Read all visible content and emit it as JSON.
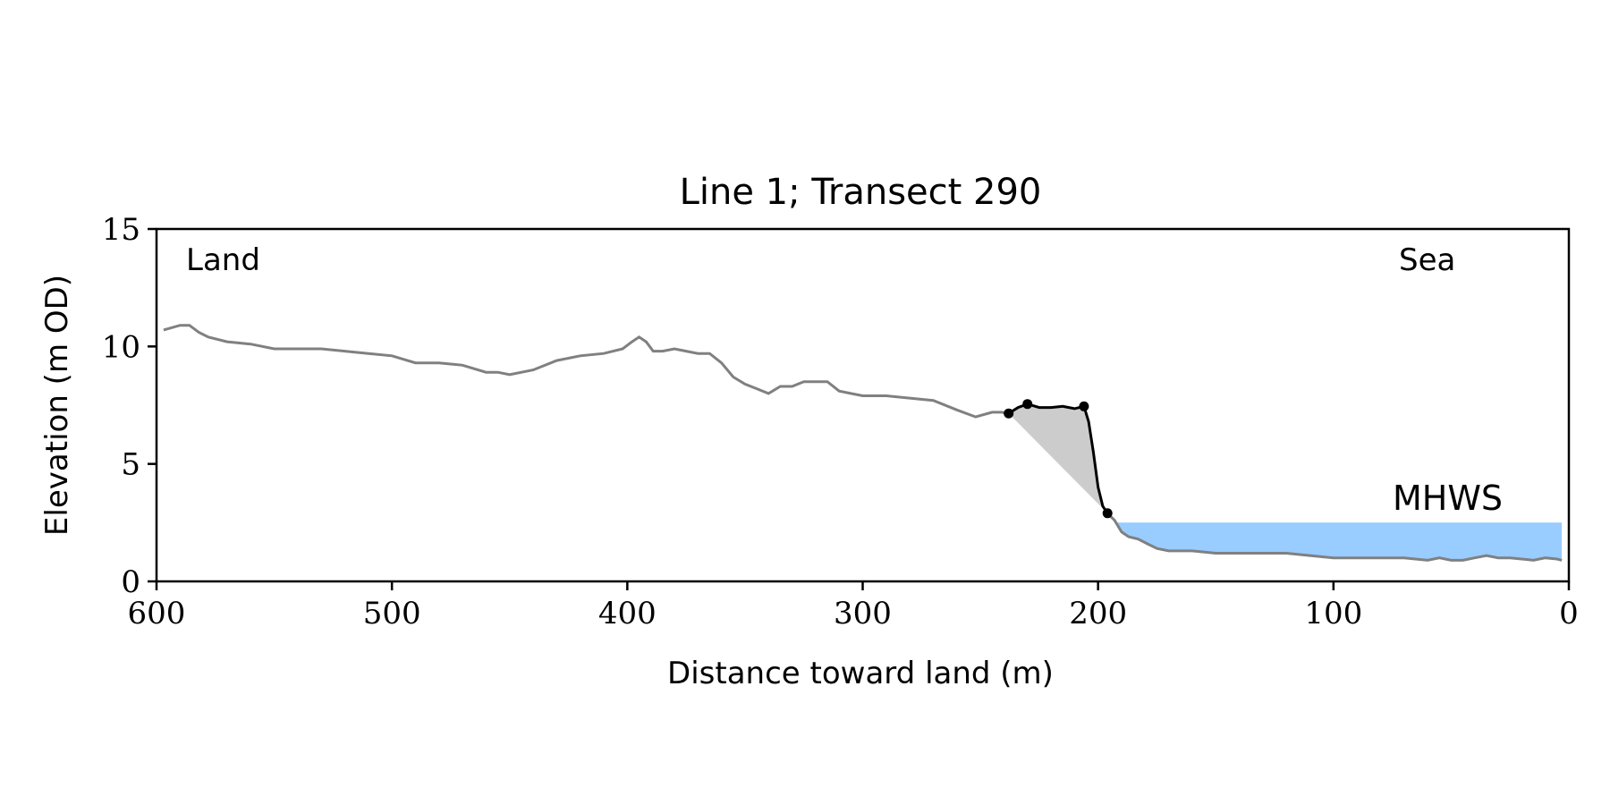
{
  "chart_data": {
    "type": "line",
    "title": "Line 1; Transect 290",
    "xlabel": "Distance toward land (m)",
    "ylabel": "Elevation (m OD)",
    "x_reversed": true,
    "xlim": [
      600,
      0
    ],
    "ylim": [
      0,
      15
    ],
    "grid": false,
    "xticks": [
      600,
      500,
      400,
      300,
      200,
      100,
      0
    ],
    "yticks": [
      0,
      5,
      10,
      15
    ],
    "annotations": {
      "land": "Land",
      "sea": "Sea",
      "mhws": "MHWS"
    },
    "colors": {
      "profile": "#808080",
      "cliff": "#000000",
      "shade": "#cccccc",
      "mhws_fill": "#99ccff",
      "mhws_text": "#6699cc"
    },
    "mhws": {
      "elevation": 2.5,
      "x_start": 192,
      "x_end": 3
    },
    "profile": {
      "x": [
        597,
        590,
        586,
        582,
        578,
        570,
        560,
        550,
        540,
        530,
        520,
        510,
        500,
        490,
        480,
        470,
        460,
        455,
        450,
        440,
        430,
        420,
        410,
        402,
        398,
        395,
        392,
        389,
        385,
        380,
        375,
        370,
        365,
        360,
        355,
        350,
        345,
        340,
        335,
        330,
        325,
        320,
        315,
        310,
        305,
        300,
        290,
        280,
        270,
        260,
        252,
        245,
        241,
        238
      ],
      "y": [
        10.7,
        10.9,
        10.9,
        10.6,
        10.4,
        10.2,
        10.1,
        9.9,
        9.9,
        9.9,
        9.8,
        9.7,
        9.6,
        9.3,
        9.3,
        9.2,
        8.9,
        8.9,
        8.8,
        9.0,
        9.4,
        9.6,
        9.7,
        9.9,
        10.2,
        10.4,
        10.2,
        9.8,
        9.8,
        9.9,
        9.8,
        9.7,
        9.7,
        9.3,
        8.7,
        8.4,
        8.2,
        8.0,
        8.3,
        8.3,
        8.5,
        8.5,
        8.5,
        8.1,
        8.0,
        7.9,
        7.9,
        7.8,
        7.7,
        7.3,
        7.0,
        7.2,
        7.2,
        7.15
      ]
    },
    "profile_sea": {
      "x": [
        193,
        190,
        187,
        183,
        179,
        175,
        170,
        165,
        160,
        150,
        140,
        130,
        120,
        110,
        100,
        90,
        80,
        70,
        60,
        55,
        50,
        45,
        40,
        35,
        30,
        25,
        20,
        15,
        10,
        5,
        3
      ],
      "y": [
        2.6,
        2.1,
        1.9,
        1.8,
        1.6,
        1.4,
        1.3,
        1.3,
        1.3,
        1.2,
        1.2,
        1.2,
        1.2,
        1.1,
        1.0,
        1.0,
        1.0,
        1.0,
        0.9,
        1.0,
        0.9,
        0.9,
        1.0,
        1.1,
        1.0,
        1.0,
        0.95,
        0.9,
        1.0,
        0.95,
        0.9
      ]
    },
    "cliff_line": {
      "x": [
        238,
        234,
        230,
        225,
        220,
        215,
        210,
        206,
        204,
        202,
        200,
        198,
        196
      ],
      "y": [
        7.15,
        7.4,
        7.55,
        7.4,
        7.4,
        7.45,
        7.35,
        7.45,
        6.8,
        5.5,
        4.0,
        3.2,
        2.9
      ]
    },
    "cliff_points": {
      "x": [
        238,
        230,
        206,
        196
      ],
      "y": [
        7.15,
        7.55,
        7.45,
        2.9
      ]
    },
    "shaded_region": {
      "x": [
        238,
        234,
        230,
        225,
        220,
        215,
        210,
        206,
        204,
        202,
        200,
        198,
        196
      ],
      "y": [
        7.15,
        7.4,
        7.55,
        7.4,
        7.4,
        7.45,
        7.35,
        7.45,
        6.8,
        5.5,
        4.0,
        3.2,
        2.9
      ]
    }
  }
}
